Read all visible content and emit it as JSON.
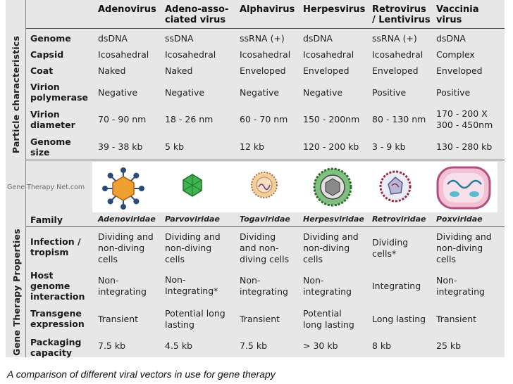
{
  "sections": {
    "particle": "Particle characteristics",
    "gene": "Gene Therapy Properties"
  },
  "columns": [
    "Adenovirus",
    "Adeno-asso-\nciated virus",
    "Alphavirus",
    "Herpesvirus",
    "Retrovirus\n/ Lentivirus",
    "Vaccinia\nvirus"
  ],
  "particle_rows": [
    {
      "label": "Genome",
      "values": [
        "dsDNA",
        "ssDNA",
        "ssRNA (+)",
        "dsDNA",
        "ssRNA (+)",
        "dsDNA"
      ]
    },
    {
      "label": "Capsid",
      "values": [
        "Icosahedral",
        "Icosahedral",
        "Icosahedral",
        "Icosahedral",
        "Icosahedral",
        "Complex"
      ]
    },
    {
      "label": "Coat",
      "values": [
        "Naked",
        "Naked",
        "Enveloped",
        "Enveloped",
        "Enveloped",
        "Enveloped"
      ]
    },
    {
      "label": "Virion\npolymerase",
      "values": [
        "Negative",
        "Negative",
        "Negative",
        "Negative",
        "Positive",
        "Positive"
      ]
    },
    {
      "label": "Virion\ndiameter",
      "values": [
        "70 - 90 nm",
        "18 - 26 nm",
        "60 - 70 nm",
        "150 - 200nm",
        "80 - 130 nm",
        "170 - 200 X\n300 - 450nm"
      ]
    },
    {
      "label": "Genome\nsize",
      "values": [
        "39 - 38 kb",
        "5 kb",
        "12 kb",
        "120 - 200 kb",
        "3 - 9 kb",
        "130 - 280 kb"
      ]
    }
  ],
  "watermark": "Gene Therapy Net.com",
  "icons": [
    "adenovirus-icon",
    "aav-icon",
    "alphavirus-icon",
    "herpesvirus-icon",
    "retrovirus-icon",
    "vaccinia-icon"
  ],
  "family": {
    "label": "Family",
    "values": [
      "Adenoviridae",
      "Parvoviridae",
      "Togaviridae",
      "Herpesviridae",
      "Retroviridae",
      "Poxviridae"
    ]
  },
  "gene_rows": [
    {
      "label": "Infection /\ntropism",
      "values": [
        "Dividing and\nnon-diving\ncells",
        "Dividing and\nnon-diving\ncells",
        "Dividing\nand non-\ndiving cells",
        "Dividing and\nnon-diving\ncells",
        "Dividing\ncells*",
        "Dividing and\nnon-diving\ncells"
      ]
    },
    {
      "label": "Host\ngenome\ninteraction",
      "values": [
        "Non-\nintegrating",
        "Non-\nIntegrating*",
        "Non-\nintegrating",
        "Non-\nintegrating",
        "Integrating",
        "Non-\nintegrating"
      ]
    },
    {
      "label": "Transgene\nexpression",
      "values": [
        "Transient",
        "Potential long\nlasting",
        "Transient",
        "Potential\nlong lasting",
        "Long lasting",
        "Transient"
      ]
    },
    {
      "label": "Packaging\ncapacity",
      "values": [
        "7.5 kb",
        "4.5 kb",
        "7.5 kb",
        "> 30 kb",
        "8 kb",
        "25 kb"
      ]
    }
  ],
  "caption": "A comparison of different viral vectors in use for gene therapy",
  "colors": {
    "background": "#e7e7e7",
    "rule": "#555555"
  }
}
